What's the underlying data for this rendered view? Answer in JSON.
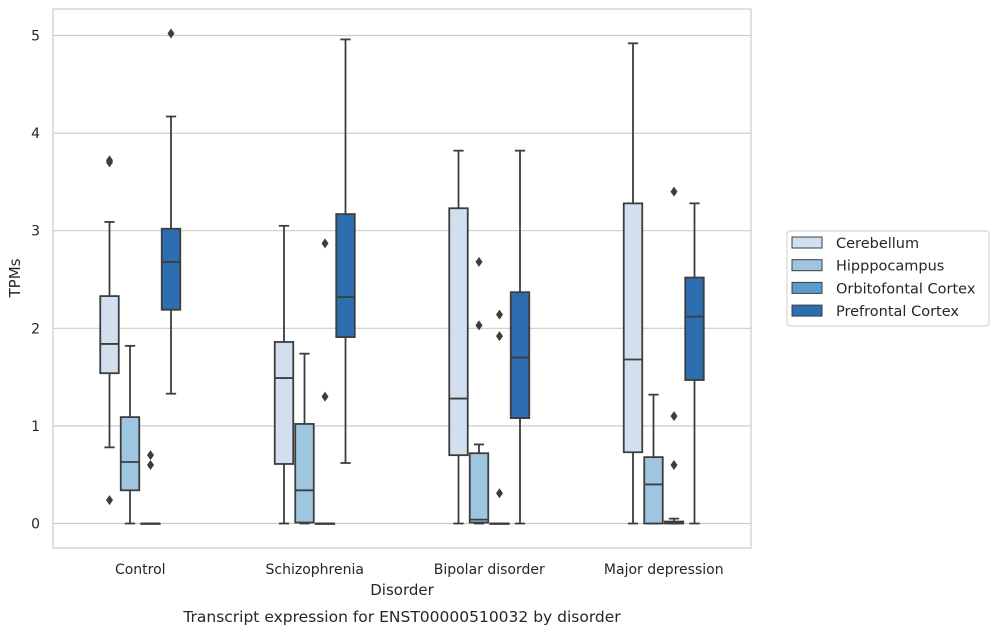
{
  "chart_data": {
    "type": "box",
    "title": "",
    "caption": "Transcript expression for ENST00000510032 by disorder",
    "xlabel": "Disorder",
    "ylabel": "TPMs",
    "ylim": [
      -0.25,
      5.28
    ],
    "yticks": [
      "0",
      "1",
      "2",
      "3",
      "4",
      "5"
    ],
    "grid": true,
    "legend_position": "right",
    "categories": [
      "Control",
      "Schizophrenia",
      "Bipolar disorder",
      "Major depression"
    ],
    "series": [
      {
        "name": "Cerebellum",
        "color": "#d1dfee",
        "boxes": [
          {
            "whislo": 0.78,
            "q1": 1.54,
            "med": 1.84,
            "q3": 2.33,
            "whishi": 3.09,
            "fliers": [
              3.7,
              3.72,
              0.24
            ]
          },
          {
            "whislo": 0.0,
            "q1": 0.61,
            "med": 1.49,
            "q3": 1.86,
            "whishi": 3.05,
            "fliers": []
          },
          {
            "whislo": 0.0,
            "q1": 0.7,
            "med": 1.28,
            "q3": 3.23,
            "whishi": 3.82,
            "fliers": []
          },
          {
            "whislo": 0.0,
            "q1": 0.73,
            "med": 1.68,
            "q3": 3.28,
            "whishi": 4.92,
            "fliers": []
          }
        ]
      },
      {
        "name": "Hipppocampus",
        "color": "#9fc6e0",
        "boxes": [
          {
            "whislo": 0.0,
            "q1": 0.34,
            "med": 0.63,
            "q3": 1.09,
            "whishi": 1.82,
            "fliers": []
          },
          {
            "whislo": 0.0,
            "q1": 0.01,
            "med": 0.34,
            "q3": 1.02,
            "whishi": 1.74,
            "fliers": []
          },
          {
            "whislo": 0.0,
            "q1": 0.01,
            "med": 0.04,
            "q3": 0.72,
            "whishi": 0.81,
            "fliers": [
              2.68,
              2.03
            ]
          },
          {
            "whislo": 0.0,
            "q1": 0.0,
            "med": 0.4,
            "q3": 0.68,
            "whishi": 1.32,
            "fliers": []
          }
        ]
      },
      {
        "name": "Orbitofontal Cortex",
        "color": "#5b9bcb",
        "boxes": [
          {
            "whislo": 0.0,
            "q1": 0.0,
            "med": 0.0,
            "q3": 0.0,
            "whishi": 0.0,
            "fliers": [
              0.7,
              0.6
            ]
          },
          {
            "whislo": 0.0,
            "q1": 0.0,
            "med": 0.0,
            "q3": 0.0,
            "whishi": 0.0,
            "fliers": [
              2.87,
              1.3
            ]
          },
          {
            "whislo": 0.0,
            "q1": 0.0,
            "med": 0.0,
            "q3": 0.0,
            "whishi": 0.0,
            "fliers": [
              2.14,
              1.92,
              0.31
            ]
          },
          {
            "whislo": 0.0,
            "q1": 0.0,
            "med": 0.01,
            "q3": 0.02,
            "whishi": 0.05,
            "fliers": [
              3.4,
              1.1,
              0.6
            ]
          }
        ]
      },
      {
        "name": "Prefrontal Cortex",
        "color": "#2c6eaf",
        "boxes": [
          {
            "whislo": 1.33,
            "q1": 2.19,
            "med": 2.68,
            "q3": 3.02,
            "whishi": 4.17,
            "fliers": [
              5.02
            ]
          },
          {
            "whislo": 0.62,
            "q1": 1.91,
            "med": 2.32,
            "q3": 3.17,
            "whishi": 4.96,
            "fliers": []
          },
          {
            "whislo": 0.0,
            "q1": 1.08,
            "med": 1.7,
            "q3": 2.37,
            "whishi": 3.82,
            "fliers": []
          },
          {
            "whislo": 0.0,
            "q1": 1.47,
            "med": 2.12,
            "q3": 2.52,
            "whishi": 3.28,
            "fliers": []
          }
        ]
      }
    ]
  }
}
